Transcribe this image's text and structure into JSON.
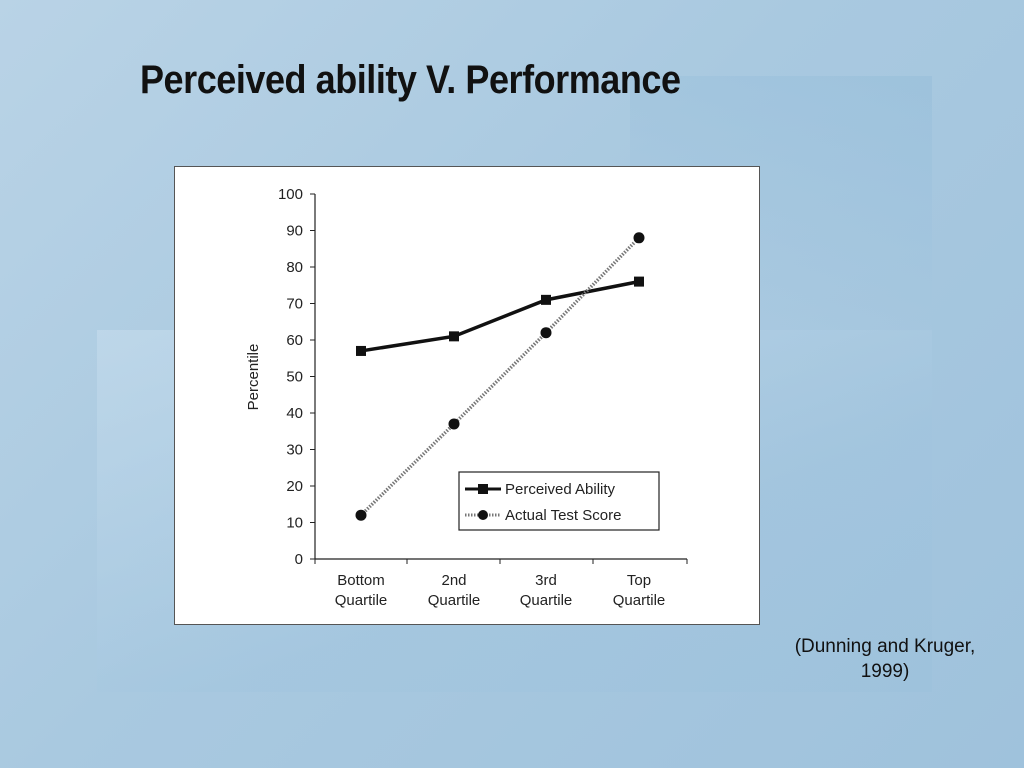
{
  "slide": {
    "title": "Perceived ability V. Performance",
    "citation_line1": "(Dunning and Kruger,",
    "citation_line2": "1999)"
  },
  "chart_data": {
    "type": "line",
    "ylabel": "Percentile",
    "xlabel": "",
    "ylim": [
      0,
      100
    ],
    "yticks": [
      0,
      10,
      20,
      30,
      40,
      50,
      60,
      70,
      80,
      90,
      100
    ],
    "categories": [
      [
        "Bottom",
        "Quartile"
      ],
      [
        "2nd",
        "Quartile"
      ],
      [
        "3rd",
        "Quartile"
      ],
      [
        "Top",
        "Quartile"
      ]
    ],
    "series": [
      {
        "name": "Perceived Ability",
        "marker": "square",
        "style": "solid",
        "color": "#111111",
        "values": [
          57,
          61,
          71,
          76
        ]
      },
      {
        "name": "Actual Test Score",
        "marker": "circle",
        "style": "dotted",
        "color": "#111111",
        "values": [
          12,
          37,
          62,
          88
        ]
      }
    ],
    "legend": {
      "position": "bottom-right"
    },
    "grid": false
  }
}
